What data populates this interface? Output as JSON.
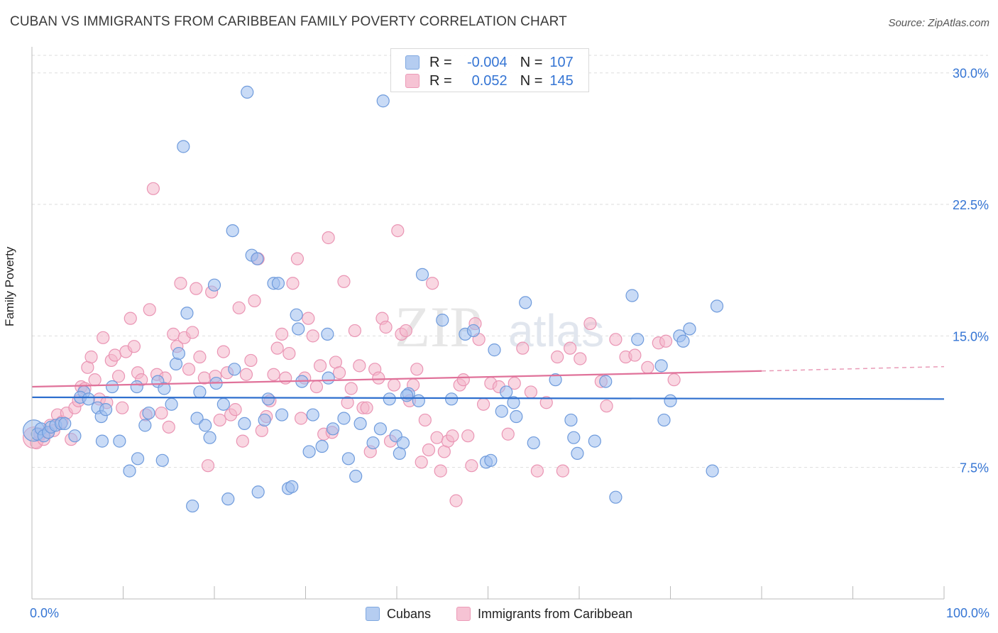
{
  "title": "CUBAN VS IMMIGRANTS FROM CARIBBEAN FAMILY POVERTY CORRELATION CHART",
  "source": "Source: ZipAtlas.com",
  "watermark": {
    "zip": "ZIP",
    "atlas": "atlas"
  },
  "legend_top": {
    "rows": [
      {
        "r_label": "R =",
        "r_value": "-0.004",
        "n_label": "N =",
        "n_value": "107"
      },
      {
        "r_label": "R =",
        "r_value": "0.052",
        "n_label": "N =",
        "n_value": "145"
      }
    ]
  },
  "legend_bottom": {
    "cubans": "Cubans",
    "caribbean": "Immigrants from Caribbean"
  },
  "colors": {
    "blue_fill": "#9dbdee",
    "blue_stroke": "#6f9bdc",
    "blue_line": "#2e6fce",
    "pink_fill": "#f4b6ca",
    "pink_stroke": "#ea95b4",
    "pink_line": "#e0729a",
    "tick_label": "#3575d4",
    "grid": "#dddddd"
  },
  "chart_data": {
    "type": "scatter",
    "title": "CUBAN VS IMMIGRANTS FROM CARIBBEAN FAMILY POVERTY CORRELATION CHART",
    "xlabel": "",
    "ylabel": "Family Poverty",
    "xlim": [
      0,
      100
    ],
    "ylim": [
      0,
      31
    ],
    "x_tick_labels": [
      {
        "value": 0,
        "label": "0.0%"
      },
      {
        "value": 100,
        "label": "100.0%"
      }
    ],
    "y_tick_labels": [
      {
        "value": 7.5,
        "label": "7.5%"
      },
      {
        "value": 15.0,
        "label": "15.0%"
      },
      {
        "value": 22.5,
        "label": "22.5%"
      },
      {
        "value": 30.0,
        "label": "30.0%"
      }
    ],
    "grid": true,
    "legend": "bottom-center",
    "series": [
      {
        "name": "Cubans",
        "r": -0.004,
        "n": 107,
        "trend": {
          "x": [
            0,
            100
          ],
          "y": [
            11.5,
            11.4
          ]
        },
        "points": [
          [
            0.2,
            9.6
          ],
          [
            0.6,
            9.4
          ],
          [
            1.0,
            9.7
          ],
          [
            1.3,
            9.3
          ],
          [
            1.8,
            9.5
          ],
          [
            2.1,
            9.8
          ],
          [
            2.6,
            9.9
          ],
          [
            3.2,
            10.0
          ],
          [
            3.6,
            10.0
          ],
          [
            4.7,
            9.3
          ],
          [
            5.7,
            11.8
          ],
          [
            5.3,
            11.5
          ],
          [
            6.2,
            11.4
          ],
          [
            7.2,
            10.9
          ],
          [
            7.6,
            10.4
          ],
          [
            8.1,
            10.8
          ],
          [
            7.7,
            9.0
          ],
          [
            9.6,
            9.0
          ],
          [
            8.8,
            12.1
          ],
          [
            10.7,
            7.3
          ],
          [
            11.6,
            8.0
          ],
          [
            11.5,
            12.1
          ],
          [
            12.4,
            9.9
          ],
          [
            12.8,
            10.6
          ],
          [
            13.8,
            12.4
          ],
          [
            14.5,
            12.0
          ],
          [
            14.3,
            7.9
          ],
          [
            15.3,
            11.1
          ],
          [
            15.8,
            13.4
          ],
          [
            16.1,
            14.0
          ],
          [
            16.6,
            25.8
          ],
          [
            17.0,
            16.3
          ],
          [
            17.6,
            5.3
          ],
          [
            18.4,
            11.8
          ],
          [
            18.1,
            10.3
          ],
          [
            19.0,
            9.9
          ],
          [
            19.5,
            9.2
          ],
          [
            20.2,
            12.3
          ],
          [
            20.0,
            17.9
          ],
          [
            21.0,
            11.1
          ],
          [
            21.5,
            5.7
          ],
          [
            22.2,
            13.1
          ],
          [
            22.0,
            21.0
          ],
          [
            23.3,
            10.0
          ],
          [
            23.6,
            28.9
          ],
          [
            24.1,
            19.6
          ],
          [
            24.7,
            19.4
          ],
          [
            24.8,
            6.1
          ],
          [
            25.5,
            10.2
          ],
          [
            25.9,
            11.4
          ],
          [
            26.5,
            18.0
          ],
          [
            27.0,
            18.0
          ],
          [
            27.4,
            10.5
          ],
          [
            28.1,
            6.3
          ],
          [
            28.5,
            6.4
          ],
          [
            29.0,
            16.2
          ],
          [
            29.6,
            12.4
          ],
          [
            29.2,
            15.4
          ],
          [
            30.4,
            8.4
          ],
          [
            30.8,
            10.5
          ],
          [
            31.8,
            8.7
          ],
          [
            32.4,
            15.1
          ],
          [
            32.5,
            12.6
          ],
          [
            33.0,
            9.7
          ],
          [
            34.2,
            10.3
          ],
          [
            34.7,
            8.0
          ],
          [
            35.5,
            7.0
          ],
          [
            36.0,
            10.0
          ],
          [
            37.4,
            8.9
          ],
          [
            38.2,
            9.7
          ],
          [
            38.5,
            28.4
          ],
          [
            39.2,
            11.4
          ],
          [
            39.9,
            9.3
          ],
          [
            40.3,
            8.3
          ],
          [
            40.7,
            8.9
          ],
          [
            41.3,
            11.7
          ],
          [
            41.1,
            11.6
          ],
          [
            42.4,
            11.3
          ],
          [
            42.8,
            18.5
          ],
          [
            45.0,
            15.9
          ],
          [
            46.0,
            11.4
          ],
          [
            47.5,
            15.1
          ],
          [
            48.4,
            15.3
          ],
          [
            49.8,
            7.8
          ],
          [
            50.3,
            7.9
          ],
          [
            50.7,
            14.2
          ],
          [
            51.5,
            10.7
          ],
          [
            52.0,
            11.8
          ],
          [
            52.8,
            11.2
          ],
          [
            53.1,
            10.4
          ],
          [
            54.1,
            16.9
          ],
          [
            55.0,
            8.9
          ],
          [
            57.4,
            12.5
          ],
          [
            59.1,
            10.2
          ],
          [
            59.4,
            9.2
          ],
          [
            59.8,
            8.3
          ],
          [
            61.7,
            9.0
          ],
          [
            62.9,
            12.4
          ],
          [
            64.0,
            5.8
          ],
          [
            65.8,
            17.3
          ],
          [
            66.4,
            14.8
          ],
          [
            69.0,
            13.3
          ],
          [
            69.3,
            10.2
          ],
          [
            70.0,
            11.3
          ],
          [
            71.0,
            15.0
          ],
          [
            71.4,
            14.7
          ],
          [
            72.1,
            15.4
          ],
          [
            74.6,
            7.3
          ],
          [
            75.1,
            16.7
          ]
        ]
      },
      {
        "name": "Immigrants from Caribbean",
        "r": 0.052,
        "n": 145,
        "trend": {
          "x": [
            0,
            80
          ],
          "y": [
            12.1,
            13.0
          ]
        },
        "trend_extension": {
          "x": [
            80,
            100
          ],
          "y": [
            13.0,
            13.25
          ]
        },
        "points": [
          [
            0.2,
            9.2
          ],
          [
            0.5,
            8.9
          ],
          [
            0.9,
            9.4
          ],
          [
            1.3,
            9.1
          ],
          [
            1.7,
            9.5
          ],
          [
            2.0,
            9.9
          ],
          [
            2.4,
            9.6
          ],
          [
            2.8,
            10.5
          ],
          [
            3.3,
            10.1
          ],
          [
            3.8,
            10.6
          ],
          [
            4.3,
            9.1
          ],
          [
            4.7,
            10.9
          ],
          [
            5.1,
            11.3
          ],
          [
            5.4,
            12.1
          ],
          [
            5.8,
            12.0
          ],
          [
            6.1,
            13.2
          ],
          [
            6.5,
            13.8
          ],
          [
            6.9,
            12.5
          ],
          [
            7.4,
            11.4
          ],
          [
            7.8,
            14.9
          ],
          [
            8.2,
            11.2
          ],
          [
            8.7,
            13.6
          ],
          [
            9.1,
            13.9
          ],
          [
            9.5,
            12.7
          ],
          [
            9.9,
            10.9
          ],
          [
            10.3,
            14.1
          ],
          [
            10.8,
            16.0
          ],
          [
            11.2,
            14.4
          ],
          [
            11.6,
            12.9
          ],
          [
            12.0,
            12.5
          ],
          [
            12.5,
            10.5
          ],
          [
            12.9,
            16.5
          ],
          [
            13.3,
            23.4
          ],
          [
            13.7,
            12.8
          ],
          [
            14.2,
            10.6
          ],
          [
            14.6,
            12.6
          ],
          [
            15.0,
            9.8
          ],
          [
            15.5,
            15.1
          ],
          [
            15.9,
            14.4
          ],
          [
            16.3,
            18.0
          ],
          [
            16.7,
            14.9
          ],
          [
            17.2,
            13.1
          ],
          [
            17.6,
            15.2
          ],
          [
            18.0,
            17.7
          ],
          [
            18.4,
            13.8
          ],
          [
            18.9,
            12.6
          ],
          [
            19.3,
            7.6
          ],
          [
            19.7,
            17.5
          ],
          [
            20.1,
            12.7
          ],
          [
            20.6,
            10.2
          ],
          [
            21.0,
            14.1
          ],
          [
            21.4,
            12.9
          ],
          [
            21.8,
            10.5
          ],
          [
            22.3,
            10.8
          ],
          [
            22.7,
            16.6
          ],
          [
            23.1,
            9.0
          ],
          [
            23.5,
            12.8
          ],
          [
            24.0,
            13.6
          ],
          [
            24.4,
            17.0
          ],
          [
            24.8,
            19.4
          ],
          [
            25.2,
            9.6
          ],
          [
            25.7,
            10.4
          ],
          [
            26.1,
            11.3
          ],
          [
            26.5,
            12.8
          ],
          [
            26.9,
            14.3
          ],
          [
            27.4,
            15.1
          ],
          [
            27.8,
            12.6
          ],
          [
            28.2,
            14.0
          ],
          [
            28.6,
            18.0
          ],
          [
            29.1,
            19.4
          ],
          [
            29.5,
            10.3
          ],
          [
            29.9,
            12.6
          ],
          [
            30.3,
            16.0
          ],
          [
            30.8,
            15.0
          ],
          [
            31.2,
            12.1
          ],
          [
            31.6,
            13.3
          ],
          [
            32.0,
            9.4
          ],
          [
            32.5,
            20.6
          ],
          [
            32.9,
            9.5
          ],
          [
            33.3,
            13.5
          ],
          [
            33.7,
            12.9
          ],
          [
            34.2,
            18.1
          ],
          [
            34.6,
            11.2
          ],
          [
            35.0,
            12.0
          ],
          [
            35.4,
            15.3
          ],
          [
            35.9,
            13.3
          ],
          [
            36.3,
            10.9
          ],
          [
            36.7,
            10.9
          ],
          [
            37.1,
            8.4
          ],
          [
            37.6,
            13.1
          ],
          [
            38.0,
            12.6
          ],
          [
            38.4,
            16.0
          ],
          [
            38.8,
            15.5
          ],
          [
            39.3,
            9.0
          ],
          [
            39.7,
            12.2
          ],
          [
            40.1,
            21.0
          ],
          [
            40.5,
            15.1
          ],
          [
            41.0,
            15.3
          ],
          [
            41.4,
            11.3
          ],
          [
            41.8,
            12.2
          ],
          [
            42.2,
            13.1
          ],
          [
            42.7,
            7.8
          ],
          [
            43.1,
            10.2
          ],
          [
            43.5,
            8.5
          ],
          [
            43.9,
            18.0
          ],
          [
            44.4,
            9.2
          ],
          [
            44.8,
            7.3
          ],
          [
            45.2,
            8.4
          ],
          [
            45.6,
            9.0
          ],
          [
            46.1,
            9.3
          ],
          [
            46.5,
            5.6
          ],
          [
            46.9,
            12.2
          ],
          [
            47.3,
            12.5
          ],
          [
            47.8,
            9.3
          ],
          [
            48.2,
            7.6
          ],
          [
            48.6,
            15.7
          ],
          [
            49.0,
            14.8
          ],
          [
            49.5,
            11.1
          ],
          [
            50.3,
            12.3
          ],
          [
            51.2,
            12.1
          ],
          [
            52.2,
            9.4
          ],
          [
            52.9,
            12.3
          ],
          [
            53.8,
            14.3
          ],
          [
            54.7,
            11.8
          ],
          [
            55.4,
            7.3
          ],
          [
            56.4,
            11.2
          ],
          [
            57.6,
            13.8
          ],
          [
            58.2,
            7.3
          ],
          [
            59.0,
            14.3
          ],
          [
            60.1,
            13.7
          ],
          [
            61.2,
            15.7
          ],
          [
            62.4,
            12.4
          ],
          [
            63.0,
            11.0
          ],
          [
            64.0,
            14.8
          ],
          [
            65.1,
            13.8
          ],
          [
            66.1,
            13.9
          ],
          [
            67.5,
            13.2
          ],
          [
            68.7,
            14.6
          ],
          [
            69.5,
            14.7
          ],
          [
            70.4,
            12.5
          ]
        ]
      }
    ]
  }
}
